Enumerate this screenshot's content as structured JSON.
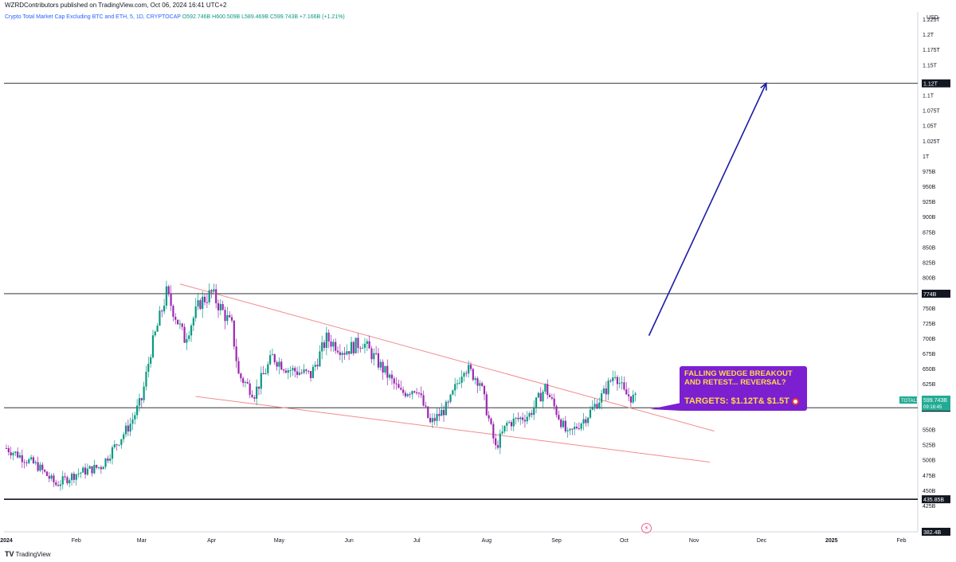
{
  "header": {
    "published_line": "WZRDContributors published on TradingView.com, Oct 06, 2024 16:41 UTC+2"
  },
  "legend": {
    "symbol": "Crypto Total Market Cap Excluding BTC and ETH, 5, 1D, CRYPTOCAP",
    "ohlc": "O592.746B H600.509B L589.469B C599.743B +7.166B (+1.21%)"
  },
  "footer": {
    "brand": "TradingView"
  },
  "annotation": {
    "line1": "FALLING WEDGE BREAKOUT",
    "line2": "AND RETEST... REVERSAL?",
    "targets": "TARGETS: $1.12T&  $1.5T",
    "target_icon": "target-icon"
  },
  "flash_icon": "lightning-icon",
  "colors": {
    "up": "#089981",
    "down": "#9c27b0",
    "wedge": "#f28b8b",
    "arrow": "#1a1aa6",
    "annotation_bg": "#7b1fd0",
    "annotation_text": "#ffd94a",
    "price_tag": "#22ab94"
  },
  "chart_data": {
    "type": "candlestick",
    "currency_label": "USD",
    "y_axis_ticks": [
      "1.225T",
      "1.2T",
      "1.175T",
      "1.15T",
      "1.1T",
      "1.075T",
      "1.05T",
      "1.025T",
      "1T",
      "975B",
      "950B",
      "925B",
      "900B",
      "875B",
      "850B",
      "825B",
      "800B",
      "750B",
      "725B",
      "700B",
      "675B",
      "650B",
      "625B",
      "550B",
      "525B",
      "500B",
      "475B",
      "450B",
      "425B"
    ],
    "x_axis_labels": [
      "2024",
      "Feb",
      "Mar",
      "Apr",
      "May",
      "Jun",
      "Jul",
      "Aug",
      "Sep",
      "Oct",
      "Nov",
      "Dec",
      "2025",
      "Feb"
    ],
    "ylim": [
      382.4,
      1237.5
    ],
    "horizontal_levels": [
      {
        "value": 1120,
        "label": "1.12T"
      },
      {
        "value": 774,
        "label": "774B"
      },
      {
        "value": 586.4,
        "label": "586.4B"
      },
      {
        "value": 435.85,
        "label": "435.85B"
      },
      {
        "value": 382.4,
        "label": "382.4B"
      }
    ],
    "current_price": {
      "symbol": "TOTAL3",
      "value_label": "599.743B",
      "countdown": "09:18:45",
      "value": 599.743
    },
    "wedge_upper": [
      [
        "2024-03-18",
        790
      ],
      [
        "2024-11-10",
        548
      ]
    ],
    "wedge_lower": [
      [
        "2024-03-25",
        605
      ],
      [
        "2024-11-08",
        497
      ]
    ],
    "arrow": [
      [
        "2024-10-12",
        705
      ],
      [
        "2024-12-03",
        1120
      ]
    ],
    "series_key_points": [
      {
        "date": "2024-01-01",
        "value": 520
      },
      {
        "date": "2024-01-15",
        "value": 490
      },
      {
        "date": "2024-01-23",
        "value": 460
      },
      {
        "date": "2024-02-01",
        "value": 478
      },
      {
        "date": "2024-02-12",
        "value": 490
      },
      {
        "date": "2024-02-25",
        "value": 560
      },
      {
        "date": "2024-03-01",
        "value": 600
      },
      {
        "date": "2024-03-05",
        "value": 680
      },
      {
        "date": "2024-03-12",
        "value": 775
      },
      {
        "date": "2024-03-20",
        "value": 700
      },
      {
        "date": "2024-03-27",
        "value": 760
      },
      {
        "date": "2024-04-01",
        "value": 775
      },
      {
        "date": "2024-04-10",
        "value": 720
      },
      {
        "date": "2024-04-13",
        "value": 640
      },
      {
        "date": "2024-04-20",
        "value": 610
      },
      {
        "date": "2024-04-28",
        "value": 670
      },
      {
        "date": "2024-05-05",
        "value": 650
      },
      {
        "date": "2024-05-15",
        "value": 640
      },
      {
        "date": "2024-05-22",
        "value": 700
      },
      {
        "date": "2024-05-30",
        "value": 680
      },
      {
        "date": "2024-06-07",
        "value": 695
      },
      {
        "date": "2024-06-15",
        "value": 655
      },
      {
        "date": "2024-06-24",
        "value": 610
      },
      {
        "date": "2024-07-01",
        "value": 620
      },
      {
        "date": "2024-07-07",
        "value": 560
      },
      {
        "date": "2024-07-15",
        "value": 590
      },
      {
        "date": "2024-07-22",
        "value": 655
      },
      {
        "date": "2024-07-29",
        "value": 630
      },
      {
        "date": "2024-08-05",
        "value": 520
      },
      {
        "date": "2024-08-10",
        "value": 560
      },
      {
        "date": "2024-08-20",
        "value": 575
      },
      {
        "date": "2024-08-27",
        "value": 620
      },
      {
        "date": "2024-09-06",
        "value": 540
      },
      {
        "date": "2024-09-15",
        "value": 575
      },
      {
        "date": "2024-09-22",
        "value": 610
      },
      {
        "date": "2024-09-27",
        "value": 645
      },
      {
        "date": "2024-10-01",
        "value": 610
      },
      {
        "date": "2024-10-06",
        "value": 600
      }
    ]
  }
}
